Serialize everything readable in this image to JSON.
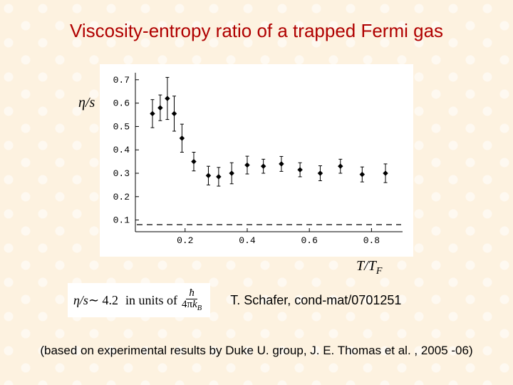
{
  "title": "Viscosity-entropy ratio of a trapped Fermi gas",
  "title_color": "#b00000",
  "title_fontsize": 26,
  "background_color": "#fdf2e0",
  "ylabel": "η/s",
  "xlabel_tex": "T/T_F",
  "xlabel_parts": {
    "t": "T",
    "slash": "/",
    "t2": "T",
    "sub": "F"
  },
  "chart": {
    "type": "scatter-errorbar",
    "panel_bg": "#ffffff",
    "axis_color": "#000000",
    "marker_color": "#000000",
    "marker_style": "diamond",
    "marker_size": 6,
    "errorbar_color": "#000000",
    "errorbar_width": 1,
    "cap_width": 5,
    "dashed_line_y": 0.08,
    "dashed_line_color": "#000000",
    "xlim": [
      0.04,
      0.9
    ],
    "ylim": [
      0.05,
      0.73
    ],
    "xticks": [
      0.2,
      0.4,
      0.6,
      0.8
    ],
    "yticks": [
      0.1,
      0.2,
      0.3,
      0.4,
      0.5,
      0.6,
      0.7
    ],
    "xtick_labels": [
      "0.2",
      "0.4",
      "0.6",
      "0.8"
    ],
    "ytick_labels": [
      "0.1",
      "0.2",
      "0.3",
      "0.4",
      "0.5",
      "0.6",
      "0.7"
    ],
    "tick_fontsize": 13,
    "tick_fontfamily": "Courier New",
    "points": [
      {
        "x": 0.095,
        "y": 0.555,
        "err": 0.06
      },
      {
        "x": 0.12,
        "y": 0.58,
        "err": 0.055
      },
      {
        "x": 0.143,
        "y": 0.62,
        "err": 0.09
      },
      {
        "x": 0.165,
        "y": 0.555,
        "err": 0.075
      },
      {
        "x": 0.19,
        "y": 0.45,
        "err": 0.06
      },
      {
        "x": 0.228,
        "y": 0.35,
        "err": 0.04
      },
      {
        "x": 0.275,
        "y": 0.29,
        "err": 0.04
      },
      {
        "x": 0.308,
        "y": 0.285,
        "err": 0.04
      },
      {
        "x": 0.35,
        "y": 0.3,
        "err": 0.045
      },
      {
        "x": 0.4,
        "y": 0.335,
        "err": 0.038
      },
      {
        "x": 0.452,
        "y": 0.33,
        "err": 0.03
      },
      {
        "x": 0.51,
        "y": 0.34,
        "err": 0.032
      },
      {
        "x": 0.57,
        "y": 0.315,
        "err": 0.03
      },
      {
        "x": 0.635,
        "y": 0.3,
        "err": 0.032
      },
      {
        "x": 0.7,
        "y": 0.33,
        "err": 0.03
      },
      {
        "x": 0.77,
        "y": 0.295,
        "err": 0.032
      },
      {
        "x": 0.845,
        "y": 0.3,
        "err": 0.04
      }
    ]
  },
  "formula": {
    "prefix_it": "η/s",
    "approx": " ∼ 4.2",
    "in_units": "  in units of",
    "frac_num": "ħ",
    "frac_den_a": "4π",
    "frac_den_k": "k",
    "frac_den_sub": "B"
  },
  "citation": "T. Schafer, cond-mat/0701251",
  "footer": "(based on experimental results by Duke U. group, J. E. Thomas et al. , 2005 -06)"
}
